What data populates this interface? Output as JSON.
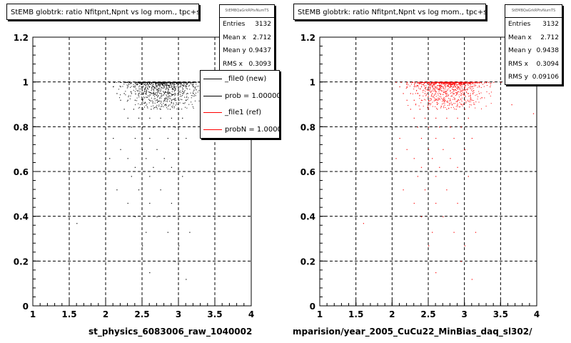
{
  "chart_data": [
    {
      "type": "scatter",
      "title": "StEMB globtrk: ratio Nfitpnt,Npnt vs log mom., tpc+svt",
      "xlabel": "st_physics_6083006_raw_1040002",
      "ylabel": "",
      "xlim": [
        1,
        4
      ],
      "ylim": [
        0,
        1.2
      ],
      "xticks": [
        "1",
        "1.5",
        "2",
        "2.5",
        "3",
        "3.5",
        "4"
      ],
      "yticks": [
        "0",
        "0.2",
        "0.4",
        "0.6",
        "0.8",
        "1",
        "1.2"
      ],
      "grid": true,
      "marker_color": "#000000",
      "stats": {
        "header": "StEMBQaGrkRPtvNumTS",
        "rows": [
          {
            "label": "Entries",
            "value": "3132"
          },
          {
            "label": "Mean x",
            "value": "2.712"
          },
          {
            "label": "Mean y",
            "value": "0.9437"
          },
          {
            "label": "RMS x",
            "value": "0.3093"
          }
        ]
      },
      "legend": {
        "placement": "top-right",
        "entries": [
          {
            "label": "_file0 (new)",
            "color": "#000000"
          },
          {
            "label": "prob = 1.000000",
            "color": "#000000"
          },
          {
            "label": "_file1 (ref)",
            "color": "#ff0000"
          },
          {
            "label": "probN = 1.000000",
            "color": "#ff0000"
          }
        ]
      },
      "series": [
        {
          "x": [
            2.05,
            2.12,
            2.2,
            2.28,
            2.35,
            2.42,
            2.5,
            2.55,
            2.6,
            2.65,
            2.7,
            2.75,
            2.8,
            2.85,
            2.9,
            2.95,
            3.0,
            3.05,
            3.1,
            3.15,
            3.2,
            3.3,
            3.4,
            3.5,
            2.1,
            2.2,
            2.3,
            2.4,
            2.5,
            2.6,
            2.7,
            2.8,
            2.9,
            3.0,
            3.1,
            3.2,
            3.35,
            2.15,
            2.25,
            2.35,
            2.45,
            2.55,
            2.65,
            2.75,
            2.85,
            2.95,
            3.05,
            3.2,
            2.2,
            2.3,
            2.4,
            2.5,
            2.6,
            2.7,
            2.8,
            2.9,
            3.0,
            3.1,
            2.25,
            2.38,
            2.5,
            2.62,
            2.75,
            2.88,
            3.0,
            2.3,
            2.45,
            2.6,
            2.75,
            2.9,
            3.05,
            2.35,
            2.5,
            2.65,
            2.8,
            2.95,
            1.6,
            2.1,
            2.4,
            2.6,
            2.85,
            3.1,
            2.2,
            2.5,
            2.7,
            3.0,
            2.05,
            2.3,
            2.55,
            2.8,
            2.4,
            2.65,
            2.9,
            2.35,
            2.6,
            3.05,
            2.15,
            2.45,
            2.75,
            2.3,
            2.6,
            2.9,
            2.4,
            2.7,
            2.55,
            2.85,
            3.15,
            2.5,
            3.0,
            2.95,
            2.6,
            3.1
          ],
          "y": [
            1,
            1,
            1,
            1,
            1,
            1,
            1,
            1,
            1,
            1,
            1,
            1,
            1,
            1,
            1,
            1,
            1,
            1,
            1,
            1,
            1,
            1,
            1,
            1,
            0.98,
            0.98,
            0.98,
            0.98,
            0.98,
            0.98,
            0.98,
            0.98,
            0.98,
            0.98,
            0.98,
            0.98,
            0.98,
            0.95,
            0.95,
            0.95,
            0.95,
            0.95,
            0.95,
            0.95,
            0.95,
            0.95,
            0.95,
            0.95,
            0.92,
            0.92,
            0.92,
            0.92,
            0.92,
            0.92,
            0.92,
            0.92,
            0.92,
            0.92,
            0.88,
            0.88,
            0.88,
            0.88,
            0.88,
            0.88,
            0.88,
            0.84,
            0.84,
            0.84,
            0.84,
            0.84,
            0.84,
            0.8,
            0.8,
            0.8,
            0.8,
            0.8,
            0.37,
            0.75,
            0.75,
            0.75,
            0.75,
            0.75,
            0.7,
            0.7,
            0.7,
            0.7,
            0.66,
            0.66,
            0.66,
            0.66,
            0.62,
            0.62,
            0.62,
            0.58,
            0.58,
            0.58,
            0.52,
            0.52,
            0.52,
            0.46,
            0.46,
            0.46,
            0.4,
            0.4,
            0.33,
            0.33,
            0.33,
            0.27,
            0.27,
            0.2,
            0.15,
            0.12
          ]
        }
      ]
    },
    {
      "type": "scatter",
      "title": "StEMB globtrk: ratio Nfitpnt,Npnt vs log mom., tpc+svt",
      "xlabel": "mparision/year_2005_CuCu22_MinBias_daq_sl302/",
      "ylabel": "",
      "xlim": [
        1,
        4
      ],
      "ylim": [
        0,
        1.2
      ],
      "xticks": [
        "1",
        "1.5",
        "2",
        "2.5",
        "3",
        "3.5",
        "4"
      ],
      "yticks": [
        "0",
        "0.2",
        "0.4",
        "0.6",
        "0.8",
        "1",
        "1.2"
      ],
      "grid": true,
      "marker_color": "#ff0000",
      "stats": {
        "header": "StEMBQaGrkRPtvNumTS",
        "rows": [
          {
            "label": "Entries",
            "value": "3132"
          },
          {
            "label": "Mean x",
            "value": "2.712"
          },
          {
            "label": "Mean y",
            "value": "0.9438"
          },
          {
            "label": "RMS x",
            "value": "0.3094"
          },
          {
            "label": "RMS y",
            "value": "0.09106"
          }
        ]
      },
      "series": [
        {
          "x": [
            2.05,
            2.12,
            2.2,
            2.28,
            2.35,
            2.42,
            2.5,
            2.55,
            2.6,
            2.65,
            2.7,
            2.75,
            2.8,
            2.85,
            2.9,
            2.95,
            3.0,
            3.05,
            3.1,
            3.15,
            3.2,
            3.3,
            3.4,
            3.5,
            2.1,
            2.2,
            2.3,
            2.4,
            2.5,
            2.6,
            2.7,
            2.8,
            2.9,
            3.0,
            3.1,
            3.2,
            3.35,
            2.15,
            2.25,
            2.35,
            2.45,
            2.55,
            2.65,
            2.75,
            2.85,
            2.95,
            3.05,
            3.2,
            2.2,
            2.3,
            2.4,
            2.5,
            2.6,
            2.7,
            2.8,
            2.9,
            3.0,
            3.1,
            2.25,
            2.38,
            2.5,
            2.62,
            2.75,
            2.88,
            3.0,
            2.3,
            2.45,
            2.6,
            2.75,
            2.9,
            3.05,
            2.35,
            2.5,
            2.65,
            2.8,
            2.95,
            3.65,
            3.95,
            2.1,
            2.4,
            2.6,
            2.85,
            3.1,
            2.2,
            2.5,
            2.7,
            3.0,
            2.05,
            2.3,
            2.55,
            2.8,
            2.4,
            2.65,
            2.9,
            2.35,
            2.6,
            3.05,
            2.15,
            2.45,
            2.75,
            2.3,
            2.6,
            2.9,
            2.4,
            2.7,
            2.55,
            2.85,
            3.15,
            2.5,
            3.0,
            2.95,
            2.6,
            3.1,
            1.6
          ],
          "y": [
            1,
            1,
            1,
            1,
            1,
            1,
            1,
            1,
            1,
            1,
            1,
            1,
            1,
            1,
            1,
            1,
            1,
            1,
            1,
            1,
            1,
            1,
            1,
            1,
            0.98,
            0.98,
            0.98,
            0.98,
            0.98,
            0.98,
            0.98,
            0.98,
            0.98,
            0.98,
            0.98,
            0.98,
            0.98,
            0.95,
            0.95,
            0.95,
            0.95,
            0.95,
            0.95,
            0.95,
            0.95,
            0.95,
            0.95,
            0.95,
            0.92,
            0.92,
            0.92,
            0.92,
            0.92,
            0.92,
            0.92,
            0.92,
            0.92,
            0.92,
            0.88,
            0.88,
            0.88,
            0.88,
            0.88,
            0.88,
            0.88,
            0.84,
            0.84,
            0.84,
            0.84,
            0.84,
            0.84,
            0.8,
            0.8,
            0.8,
            0.8,
            0.8,
            0.9,
            0.86,
            0.75,
            0.75,
            0.75,
            0.75,
            0.75,
            0.7,
            0.7,
            0.7,
            0.7,
            0.66,
            0.66,
            0.66,
            0.66,
            0.62,
            0.62,
            0.62,
            0.58,
            0.58,
            0.58,
            0.52,
            0.52,
            0.52,
            0.46,
            0.46,
            0.46,
            0.4,
            0.4,
            0.33,
            0.33,
            0.33,
            0.27,
            0.27,
            0.2,
            0.15,
            0.12,
            0.37
          ]
        }
      ]
    }
  ]
}
